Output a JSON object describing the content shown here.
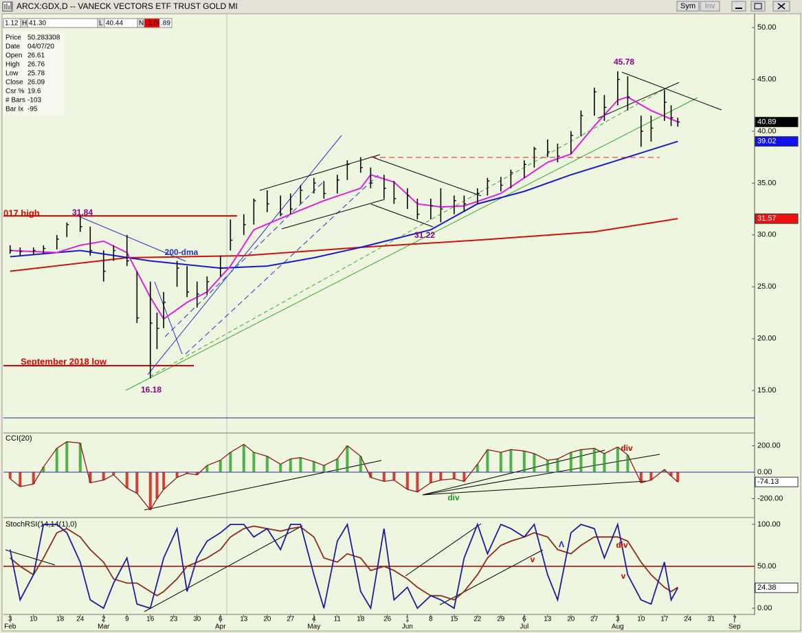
{
  "window": {
    "title": "ARCX:GDX,D -- VANECK VECTORS ETF TRUST GOLD MI",
    "buttons": [
      "Sym",
      "Inv"
    ]
  },
  "toolbar": [
    "1.12",
    "H",
    "41.30",
    "L",
    "40.44",
    "N",
    "-1.08",
    ".89"
  ],
  "info_panel": [
    {
      "label": "Price",
      "value": "50.283308"
    },
    {
      "label": "Date",
      "value": "04/07/20"
    },
    {
      "label": "Open",
      "value": "26.61"
    },
    {
      "label": "High",
      "value": "26.76"
    },
    {
      "label": "Low",
      "value": "25.78"
    },
    {
      "label": "Close",
      "value": "26.09"
    },
    {
      "label": "Csr %",
      "value": "19.6"
    },
    {
      "label": "# Bars",
      "value": "-103"
    },
    {
      "label": "Bar Ix",
      "value": "-95"
    }
  ],
  "chart_data": [
    {
      "type": "ohlc",
      "xlim": [
        "Feb 1",
        "Sep 13"
      ],
      "ylim": [
        12.36,
        51.33
      ],
      "yticks": [
        {
          "value": 15,
          "label": "15.00"
        },
        {
          "value": 20,
          "label": "20.00"
        },
        {
          "value": 25,
          "label": "25.00"
        },
        {
          "value": 30,
          "label": "30.00"
        },
        {
          "value": 35,
          "label": "35.00"
        },
        {
          "value": 40,
          "label": "40.00"
        },
        {
          "value": 45,
          "label": "45.00"
        },
        {
          "value": 50,
          "label": "50.00"
        }
      ],
      "color": "#000000",
      "x": [
        "Feb 3",
        "Feb 6",
        "Feb 10",
        "Feb 13",
        "Feb 17",
        "Feb 20",
        "Feb 24",
        "Feb 27",
        "Mar 2",
        "Mar 5",
        "Mar 9",
        "Mar 12",
        "Mar 16",
        "Mar 18",
        "Mar 20",
        "Mar 24",
        "Mar 27",
        "Mar 30",
        "Apr 2",
        "Apr 6",
        "Apr 9",
        "Apr 13",
        "Apr 16",
        "Apr 20",
        "Apr 24",
        "Apr 27",
        "Apr 30",
        "May 4",
        "May 7",
        "May 11",
        "May 14",
        "May 18",
        "May 21",
        "May 25",
        "May 28",
        "Jun 1",
        "Jun 4",
        "Jun 8",
        "Jun 11",
        "Jun 15",
        "Jun 18",
        "Jun 22",
        "Jun 25",
        "Jun 29",
        "Jul 2",
        "Jul 6",
        "Jul 9",
        "Jul 13",
        "Jul 16",
        "Jul 20",
        "Jul 23",
        "Jul 27",
        "Jul 30",
        "Aug 3",
        "Aug 6",
        "Aug 10",
        "Aug 13",
        "Aug 17",
        "Aug 19",
        "Aug 21"
      ],
      "high": [
        29,
        28.8,
        28.8,
        29,
        30,
        31.2,
        31.84,
        30.8,
        28.5,
        29,
        30,
        26.5,
        25.5,
        22.5,
        24.5,
        27.5,
        27,
        25.5,
        26,
        28,
        31.5,
        32,
        33.5,
        34.3,
        33.8,
        34,
        34.8,
        35.5,
        35.2,
        35.8,
        37.2,
        37.5,
        36.5,
        35.8,
        35.2,
        34.5,
        33.5,
        33.5,
        34.5,
        33.8,
        33.8,
        34.5,
        35.5,
        35.6,
        36.3,
        37.2,
        38.5,
        39.2,
        38.8,
        40,
        42,
        44.2,
        43.5,
        45.78,
        45.3,
        41.5,
        41.5,
        44,
        42.5,
        41.3
      ],
      "low": [
        28.2,
        28,
        28.1,
        28.2,
        28.6,
        29.8,
        30.3,
        28,
        25.5,
        27.5,
        27,
        21.5,
        16.18,
        19,
        21,
        25,
        24,
        23,
        24.2,
        26,
        28.5,
        30,
        31,
        32.2,
        31.8,
        32,
        33,
        34,
        33.5,
        34,
        35.3,
        36,
        34.5,
        33.5,
        33,
        32.5,
        31.5,
        31.5,
        31.22,
        32,
        32.3,
        33,
        33.8,
        34.2,
        34.5,
        35.5,
        36.5,
        37.5,
        37,
        37.8,
        39.5,
        41.5,
        41,
        42.5,
        42,
        38.5,
        39,
        41,
        40.5,
        40.44
      ],
      "close": [
        28.5,
        28.4,
        28.5,
        28.7,
        29.6,
        31,
        30.8,
        28.5,
        26.5,
        28.5,
        27.5,
        22,
        21.5,
        21,
        23.5,
        26.8,
        24.5,
        24.3,
        25.5,
        26.8,
        29.5,
        31,
        33.3,
        33,
        32,
        32.5,
        34.3,
        35,
        34,
        35.3,
        36.8,
        36.5,
        35,
        34.5,
        33.5,
        33.8,
        32,
        32.8,
        32.5,
        33.3,
        33,
        34,
        35.2,
        34.8,
        36,
        36.8,
        38.3,
        38,
        37.6,
        39.6,
        41.5,
        43.8,
        42.3,
        45,
        43.3,
        40,
        40.3,
        42.8,
        41.3,
        40.89
      ],
      "overlays": [
        {
          "color": "#cc1111",
          "x": [
            "Feb 3",
            "Mar 9",
            "Apr 13",
            "May 18",
            "Jun 22",
            "Jul 27",
            "Aug 21"
          ],
          "values": [
            26.5,
            27.8,
            28,
            28.8,
            29.5,
            30.3,
            31.57
          ]
        },
        {
          "color": "#1a1acc",
          "x": [
            "Feb 3",
            "Feb 24",
            "Mar 16",
            "Apr 6",
            "Apr 20",
            "May 4",
            "May 18",
            "Jun 8",
            "Jun 22",
            "Jul 6",
            "Jul 20",
            "Aug 3",
            "Aug 21"
          ],
          "values": [
            27.9,
            28.5,
            27.5,
            26.8,
            27,
            27.8,
            28.8,
            30.5,
            33,
            34.2,
            35.8,
            37.2,
            39.02
          ]
        },
        {
          "color": "#e020e0",
          "x": [
            "Feb 3",
            "Feb 17",
            "Feb 24",
            "Mar 2",
            "Mar 9",
            "Mar 16",
            "Mar 20",
            "Mar 27",
            "Apr 2",
            "Apr 9",
            "Apr 16",
            "Apr 27",
            "May 7",
            "May 18",
            "May 21",
            "May 28",
            "Jun 4",
            "Jun 11",
            "Jun 18",
            "Jun 29",
            "Jul 6",
            "Jul 13",
            "Jul 20",
            "Jul 27",
            "Aug 3",
            "Aug 6",
            "Aug 13",
            "Aug 21"
          ],
          "values": [
            28.5,
            28.3,
            29,
            29.4,
            28.3,
            24,
            21.9,
            23.5,
            24.5,
            27,
            30.5,
            32,
            33.3,
            34.5,
            35.8,
            35.1,
            33,
            32.7,
            32.8,
            34,
            35.5,
            37,
            37.8,
            40.5,
            43,
            43.3,
            42,
            40.9
          ]
        }
      ],
      "reference_lines": [
        {
          "value": 31.84,
          "color": "#dd0000"
        },
        {
          "value": 17.4,
          "color": "#dd0000"
        }
      ],
      "annotations": [
        "45.78",
        "31.84",
        "16.18",
        "31.22",
        "200-dma",
        "017 high",
        "September 2018 low"
      ]
    },
    {
      "type": "histogram",
      "title": "CCI(20)",
      "xlim": [
        "Feb 1",
        "Sep 13"
      ],
      "ylim": [
        -338,
        296
      ],
      "yticks": [
        {
          "value": 200,
          "label": "200.00"
        },
        {
          "value": 0,
          "label": "0.00"
        },
        {
          "value": -200,
          "label": "-200.00"
        }
      ],
      "colors": {
        "positive": "#1a9a1a",
        "negative": "#cc0000",
        "line": "#8b1a1a"
      },
      "x": [
        "Feb 3",
        "Feb 6",
        "Feb 10",
        "Feb 13",
        "Feb 17",
        "Feb 20",
        "Feb 24",
        "Feb 27",
        "Mar 2",
        "Mar 5",
        "Mar 9",
        "Mar 12",
        "Mar 16",
        "Mar 18",
        "Mar 20",
        "Mar 24",
        "Mar 27",
        "Mar 30",
        "Apr 2",
        "Apr 6",
        "Apr 9",
        "Apr 13",
        "Apr 16",
        "Apr 20",
        "Apr 24",
        "Apr 27",
        "Apr 30",
        "May 4",
        "May 7",
        "May 11",
        "May 14",
        "May 18",
        "May 21",
        "May 25",
        "May 28",
        "Jun 1",
        "Jun 4",
        "Jun 8",
        "Jun 11",
        "Jun 15",
        "Jun 18",
        "Jun 22",
        "Jun 25",
        "Jun 29",
        "Jul 2",
        "Jul 6",
        "Jul 9",
        "Jul 13",
        "Jul 16",
        "Jul 20",
        "Jul 23",
        "Jul 27",
        "Jul 30",
        "Aug 3",
        "Aug 6",
        "Aug 10",
        "Aug 13",
        "Aug 17",
        "Aug 19",
        "Aug 21"
      ],
      "values": [
        -50,
        -110,
        -90,
        40,
        180,
        230,
        220,
        -80,
        -60,
        -20,
        -120,
        -160,
        -285,
        -200,
        -130,
        -40,
        -10,
        -20,
        50,
        90,
        150,
        210,
        150,
        120,
        60,
        100,
        110,
        80,
        50,
        100,
        200,
        120,
        -40,
        -70,
        -60,
        -130,
        -150,
        -80,
        -60,
        -50,
        -70,
        60,
        170,
        150,
        170,
        160,
        140,
        90,
        100,
        150,
        170,
        180,
        140,
        190,
        130,
        -80,
        -60,
        20,
        -30,
        -74.13
      ],
      "annotations": [
        "div",
        "div"
      ]
    },
    {
      "type": "line",
      "title": "StochRSI(14,14(1),0)",
      "xlim": [
        "Feb 1",
        "Sep 13"
      ],
      "ylim": [
        -6.6,
        106.6
      ],
      "yticks": [
        {
          "value": 100,
          "label": "100.00"
        },
        {
          "value": 50,
          "label": "50.00"
        },
        {
          "value": 0,
          "label": "0.00"
        }
      ],
      "reference_lines": [
        {
          "value": 50,
          "color": "#990000"
        }
      ],
      "xticks": [
        {
          "value": "Feb 3",
          "label": "3"
        },
        {
          "value": "Feb 10",
          "label": "10"
        },
        {
          "value": "Feb 18",
          "label": "18"
        },
        {
          "value": "Feb 24",
          "label": "24"
        },
        {
          "value": "Mar 2",
          "label": "2"
        },
        {
          "value": "Mar 9",
          "label": "9"
        },
        {
          "value": "Mar 16",
          "label": "16"
        },
        {
          "value": "Mar 23",
          "label": "23"
        },
        {
          "value": "Mar 30",
          "label": "30"
        },
        {
          "value": "Apr 6",
          "label": "6"
        },
        {
          "value": "Apr 13",
          "label": "13"
        },
        {
          "value": "Apr 20",
          "label": "20"
        },
        {
          "value": "Apr 27",
          "label": "27"
        },
        {
          "value": "May 4",
          "label": "4"
        },
        {
          "value": "May 11",
          "label": "11"
        },
        {
          "value": "May 18",
          "label": "18"
        },
        {
          "value": "May 26",
          "label": "26"
        },
        {
          "value": "Jun 1",
          "label": "1"
        },
        {
          "value": "Jun 8",
          "label": "8"
        },
        {
          "value": "Jun 15",
          "label": "15"
        },
        {
          "value": "Jun 22",
          "label": "22"
        },
        {
          "value": "Jun 29",
          "label": "29"
        },
        {
          "value": "Jul 6",
          "label": "6"
        },
        {
          "value": "Jul 13",
          "label": "13"
        },
        {
          "value": "Jul 20",
          "label": "20"
        },
        {
          "value": "Jul 27",
          "label": "27"
        },
        {
          "value": "Aug 3",
          "label": "3"
        },
        {
          "value": "Aug 10",
          "label": "10"
        },
        {
          "value": "Aug 17",
          "label": "17"
        },
        {
          "value": "Aug 24",
          "label": "24"
        },
        {
          "value": "Aug 31",
          "label": "31"
        },
        {
          "value": "Sep 7",
          "label": "7"
        }
      ],
      "xticks_major": [
        {
          "value": "Feb 3",
          "label": "Feb"
        },
        {
          "value": "Mar 2",
          "label": "Mar"
        },
        {
          "value": "Apr 6",
          "label": "Apr"
        },
        {
          "value": "May 4",
          "label": "May"
        },
        {
          "value": "Jun 1",
          "label": "Jun"
        },
        {
          "value": "Jul 6",
          "label": "Jul"
        },
        {
          "value": "Aug 3",
          "label": "Aug"
        },
        {
          "value": "Sep 7",
          "label": "Sep"
        }
      ],
      "x": [
        "Feb 3",
        "Feb 6",
        "Feb 10",
        "Feb 13",
        "Feb 17",
        "Feb 20",
        "Feb 24",
        "Feb 27",
        "Mar 2",
        "Mar 5",
        "Mar 9",
        "Mar 12",
        "Mar 16",
        "Mar 18",
        "Mar 20",
        "Mar 24",
        "Mar 27",
        "Mar 30",
        "Apr 2",
        "Apr 6",
        "Apr 9",
        "Apr 13",
        "Apr 16",
        "Apr 20",
        "Apr 24",
        "Apr 27",
        "Apr 30",
        "May 4",
        "May 7",
        "May 11",
        "May 14",
        "May 18",
        "May 21",
        "May 25",
        "May 28",
        "Jun 1",
        "Jun 4",
        "Jun 8",
        "Jun 11",
        "Jun 15",
        "Jun 18",
        "Jun 22",
        "Jun 25",
        "Jun 29",
        "Jul 2",
        "Jul 6",
        "Jul 9",
        "Jul 13",
        "Jul 16",
        "Jul 20",
        "Jul 23",
        "Jul 27",
        "Jul 30",
        "Aug 3",
        "Aug 6",
        "Aug 10",
        "Aug 13",
        "Aug 17",
        "Aug 19",
        "Aug 21"
      ],
      "series": [
        {
          "color": "#1a1aa0",
          "values": [
            70,
            10,
            40,
            100,
            100,
            90,
            55,
            10,
            0,
            30,
            60,
            5,
            0,
            30,
            60,
            95,
            20,
            60,
            80,
            90,
            100,
            100,
            85,
            95,
            70,
            100,
            100,
            40,
            0,
            80,
            100,
            20,
            0,
            95,
            10,
            25,
            0,
            15,
            10,
            0,
            60,
            100,
            65,
            100,
            95,
            85,
            100,
            40,
            10,
            90,
            100,
            95,
            60,
            100,
            40,
            10,
            5,
            55,
            10,
            24.38
          ]
        },
        {
          "color": "#8b2a1a",
          "values": [
            60,
            50,
            40,
            60,
            90,
            95,
            85,
            70,
            55,
            35,
            30,
            30,
            20,
            15,
            20,
            35,
            50,
            55,
            60,
            70,
            85,
            95,
            98,
            95,
            92,
            95,
            97,
            85,
            60,
            55,
            65,
            60,
            45,
            50,
            45,
            35,
            25,
            15,
            15,
            10,
            20,
            40,
            60,
            75,
            80,
            85,
            90,
            85,
            70,
            65,
            75,
            85,
            85,
            85,
            80,
            55,
            40,
            25,
            20,
            25
          ]
        }
      ],
      "annotations": [
        "div",
        "v",
        "Λ",
        "v"
      ]
    }
  ]
}
